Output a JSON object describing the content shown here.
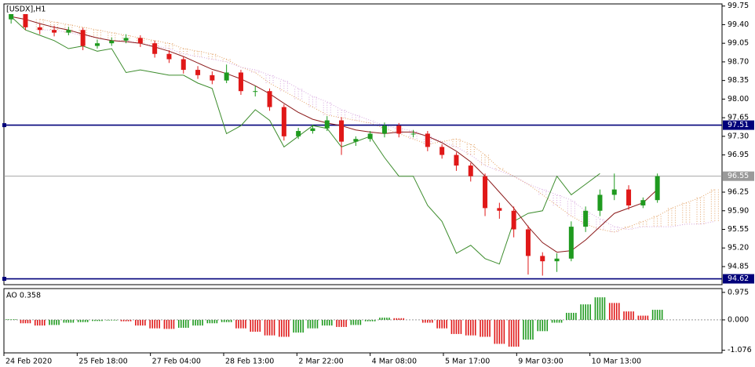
{
  "chart_data": [
    {
      "type": "candlestick",
      "title": "[USDX],H1",
      "xlim": [
        0,
        50
      ],
      "xticks": [
        {
          "value": 0,
          "label": "24 Feb 2020"
        },
        {
          "value": 5.1,
          "label": "25 Feb 18:00"
        },
        {
          "value": 10.2,
          "label": "27 Feb 04:00"
        },
        {
          "value": 15.3,
          "label": "28 Feb 13:00"
        },
        {
          "value": 20.4,
          "label": "2 Mar 22:00"
        },
        {
          "value": 25.5,
          "label": "4 Mar 08:00"
        },
        {
          "value": 30.6,
          "label": "5 Mar 17:00"
        },
        {
          "value": 35.7,
          "label": "9 Mar 03:00"
        },
        {
          "value": 40.8,
          "label": "10 Mar 13:00"
        }
      ],
      "ylim": [
        94.51,
        99.79
      ],
      "yticks": [
        99.75,
        {
          "value": 99.4,
          "label": "99.40"
        },
        99.05,
        {
          "value": 98.7,
          "label": "98.70"
        },
        98.35,
        {
          "value": 98,
          "label": "98.00"
        },
        97.65,
        {
          "value": 97.3,
          "label": "97.30"
        },
        96.95,
        96.25,
        {
          "value": 95.9,
          "label": "95.90"
        },
        95.55,
        {
          "value": 95.2,
          "label": "95.20"
        },
        94.85
      ],
      "open": [
        99.5,
        99.6,
        99.35,
        99.3,
        99.25,
        99.3,
        99.0,
        99.05,
        99.1,
        99.15,
        99.05,
        98.85,
        98.75,
        98.55,
        98.45,
        98.35,
        98.5,
        98.15,
        98.15,
        97.85,
        97.3,
        97.4,
        97.45,
        97.6,
        97.2,
        97.25,
        97.35,
        97.5,
        97.35,
        97.35,
        97.1,
        96.95,
        96.75,
        96.55,
        95.95,
        95.9,
        95.55,
        95.05,
        94.95,
        95.0,
        95.6,
        95.9,
        96.2,
        96.3,
        96.0,
        96.1
      ],
      "high": [
        99.7,
        99.68,
        99.42,
        99.38,
        99.36,
        99.34,
        99.12,
        99.16,
        99.22,
        99.2,
        99.1,
        98.92,
        98.8,
        98.62,
        98.52,
        98.65,
        98.55,
        98.25,
        98.2,
        97.9,
        97.46,
        97.52,
        97.68,
        97.66,
        97.3,
        97.4,
        97.56,
        97.55,
        97.42,
        97.4,
        97.15,
        97.0,
        96.8,
        96.6,
        96.05,
        95.98,
        95.62,
        95.12,
        95.1,
        95.7,
        95.98,
        96.3,
        96.6,
        96.38,
        96.15,
        96.6
      ],
      "low": [
        99.42,
        99.3,
        99.22,
        99.18,
        99.2,
        98.92,
        98.95,
        99.0,
        99.05,
        98.98,
        98.78,
        98.68,
        98.48,
        98.38,
        98.28,
        98.3,
        98.08,
        98.05,
        97.78,
        97.22,
        97.25,
        97.35,
        97.4,
        96.95,
        97.12,
        97.2,
        97.28,
        97.28,
        97.28,
        97.02,
        96.88,
        96.65,
        96.45,
        95.8,
        95.75,
        95.4,
        94.7,
        94.68,
        94.75,
        94.95,
        95.5,
        95.8,
        96.1,
        95.92,
        95.95,
        96.05
      ],
      "close": [
        99.6,
        99.35,
        99.3,
        99.25,
        99.3,
        99.0,
        99.05,
        99.1,
        99.15,
        99.05,
        98.85,
        98.75,
        98.55,
        98.45,
        98.35,
        98.5,
        98.15,
        98.15,
        97.85,
        97.3,
        97.4,
        97.45,
        97.6,
        97.2,
        97.25,
        97.35,
        97.5,
        97.35,
        97.35,
        97.1,
        96.95,
        96.75,
        96.55,
        95.95,
        95.9,
        95.55,
        95.05,
        94.95,
        95.0,
        95.6,
        95.9,
        96.2,
        96.3,
        96.0,
        96.1,
        96.55
      ],
      "up_color": "#1f9a1f",
      "down_color": "#e01818",
      "series": [
        {
          "color": "#3c8c2c",
          "values": [
            99.55,
            99.3,
            99.2,
            99.1,
            98.95,
            99.0,
            98.9,
            98.95,
            98.5,
            98.55,
            98.5,
            98.45,
            98.45,
            98.3,
            98.2,
            97.35,
            97.5,
            97.8,
            97.6,
            97.1,
            97.3,
            97.5,
            97.45,
            97.1,
            97.2,
            97.3,
            96.9,
            96.55,
            96.55,
            96.0,
            95.7,
            95.1,
            95.25,
            95.0,
            94.9,
            95.7,
            95.85,
            95.9,
            96.55,
            96.2,
            96.4,
            96.6,
            null,
            null,
            null,
            null
          ]
        },
        {
          "color": "#8b1a1a",
          "values": [
            99.55,
            99.5,
            99.42,
            99.35,
            99.3,
            99.22,
            99.15,
            99.1,
            99.08,
            99.05,
            98.98,
            98.9,
            98.8,
            98.68,
            98.56,
            98.48,
            98.38,
            98.25,
            98.1,
            97.92,
            97.75,
            97.62,
            97.55,
            97.5,
            97.42,
            97.38,
            97.35,
            97.38,
            97.38,
            97.3,
            97.18,
            97.02,
            96.82,
            96.55,
            96.25,
            95.95,
            95.6,
            95.3,
            95.12,
            95.15,
            95.35,
            95.6,
            95.85,
            95.95,
            96.05,
            96.3
          ]
        }
      ],
      "cloud": [
        {
          "color": "#e2a266",
          "values": [
            null,
            null,
            99.5,
            99.45,
            99.4,
            99.35,
            99.3,
            99.25,
            99.2,
            99.15,
            99.1,
            99.05,
            98.95,
            98.9,
            98.85,
            98.75,
            98.6,
            98.5,
            98.3,
            98.15,
            98.0,
            97.85,
            97.7,
            97.65,
            97.6,
            97.55,
            97.45,
            97.35,
            97.25,
            97.15,
            97.2,
            97.25,
            97.15,
            96.95,
            96.7,
            96.55,
            96.4,
            96.2,
            96.0,
            95.8,
            95.65,
            95.55,
            95.5,
            95.6,
            95.7,
            95.8,
            95.95,
            96.05,
            96.15,
            96.3
          ]
        },
        {
          "color": "#d6a6de",
          "values": [
            null,
            null,
            99.3,
            99.3,
            99.25,
            99.2,
            99.15,
            99.1,
            99.1,
            99.05,
            99.0,
            98.95,
            98.85,
            98.8,
            98.75,
            98.7,
            98.6,
            98.55,
            98.45,
            98.35,
            98.2,
            98.05,
            97.95,
            97.8,
            97.7,
            97.6,
            97.5,
            97.45,
            97.4,
            97.3,
            97.2,
            97.1,
            96.95,
            96.75,
            96.65,
            96.55,
            96.4,
            96.3,
            96.2,
            96.1,
            95.9,
            95.75,
            95.6,
            95.55,
            95.6,
            95.6,
            95.6,
            95.65,
            95.65,
            95.7
          ]
        }
      ],
      "hlines": {
        "color": "#00007a",
        "values": [
          97.51,
          94.62
        ]
      },
      "last_price": 96.55,
      "last_color": "#9a9a9a"
    },
    {
      "type": "bar",
      "title": "AO 0.358",
      "ylim": [
        -1.17,
        1.11
      ],
      "yticks": [
        0.975,
        {
          "value": 0,
          "label": "0.000"
        },
        -1.076
      ],
      "values": [
        0.02,
        -0.12,
        -0.2,
        -0.18,
        -0.1,
        -0.08,
        -0.04,
        -0.02,
        -0.05,
        -0.2,
        -0.3,
        -0.32,
        -0.28,
        -0.2,
        -0.12,
        -0.08,
        -0.3,
        -0.42,
        -0.55,
        -0.6,
        -0.45,
        -0.3,
        -0.2,
        -0.25,
        -0.18,
        -0.05,
        0.08,
        0.06,
        0.0,
        -0.1,
        -0.3,
        -0.5,
        -0.55,
        -0.6,
        -0.85,
        -0.95,
        -0.7,
        -0.4,
        -0.1,
        0.25,
        0.55,
        0.8,
        0.6,
        0.3,
        0.15,
        0.358
      ],
      "up_color": "#1f9a1f",
      "down_color": "#e01818"
    }
  ]
}
